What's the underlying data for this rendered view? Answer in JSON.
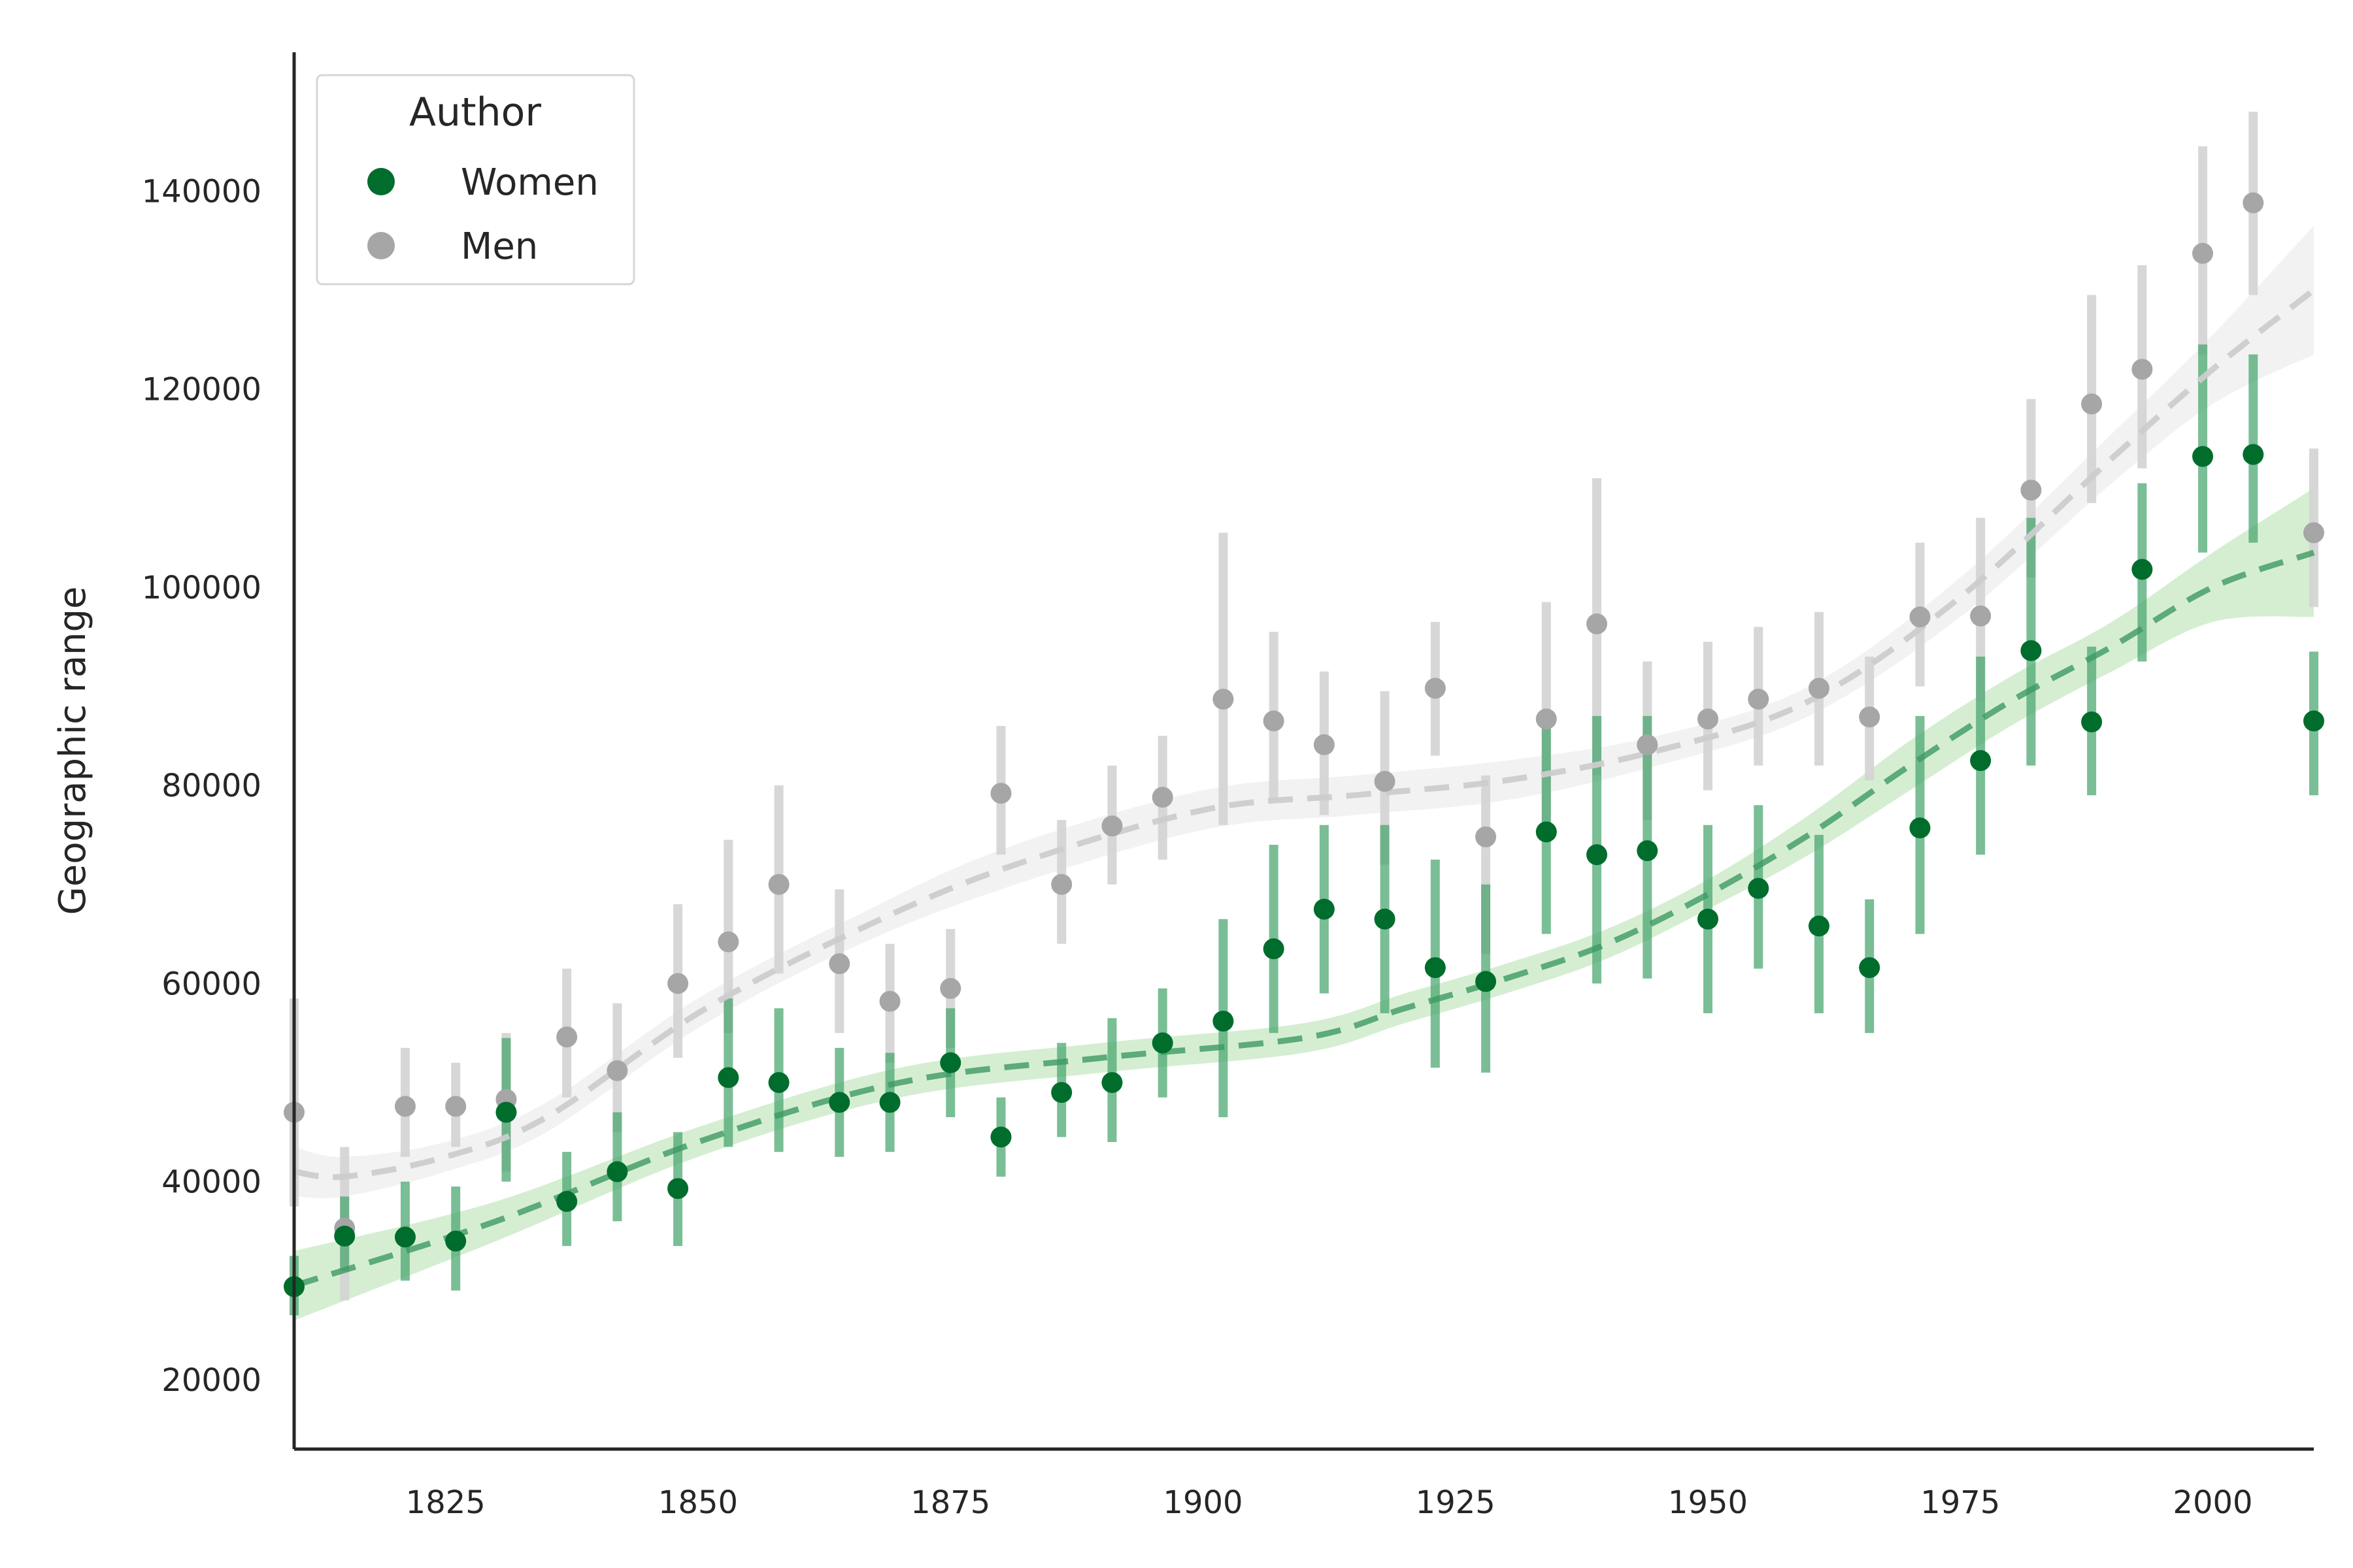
{
  "chart_data": {
    "type": "scatter",
    "title": "",
    "xlabel": "",
    "ylabel": "Geographic range",
    "xlim": [
      1810,
      2010
    ],
    "ylim": [
      13000,
      154000
    ],
    "xticks": [
      1825,
      1850,
      1875,
      1900,
      1925,
      1950,
      1975,
      2000
    ],
    "yticks": [
      20000,
      40000,
      60000,
      80000,
      100000,
      120000,
      140000
    ],
    "grid": false,
    "legend": {
      "title": "Author",
      "placement": "top-left"
    },
    "series": [
      {
        "name": "Women",
        "color": "#006d2c",
        "errorbar_color": "#41a36a",
        "trend_color": "#3d9a63",
        "band_color": "#a1d99b",
        "x": [
          1810,
          1815,
          1821,
          1826,
          1831,
          1837,
          1842,
          1848,
          1853,
          1858,
          1864,
          1869,
          1875,
          1880,
          1886,
          1891,
          1896,
          1902,
          1907,
          1912,
          1918,
          1923,
          1928,
          1934,
          1939,
          1944,
          1950,
          1955,
          1961,
          1966,
          1971,
          1977,
          1982,
          1988,
          1993,
          1999,
          2004,
          2010
        ],
        "y": [
          29400,
          34500,
          34400,
          34000,
          47000,
          38000,
          41000,
          39300,
          50500,
          50000,
          48000,
          48000,
          52000,
          44500,
          49000,
          50000,
          54000,
          56200,
          63500,
          67500,
          66500,
          61600,
          60200,
          75300,
          73000,
          73400,
          66500,
          69600,
          65800,
          61600,
          75700,
          82500,
          93600,
          86400,
          101800,
          113200,
          113400,
          86500
        ],
        "err_low": [
          26500,
          31000,
          30000,
          29000,
          40000,
          33500,
          36000,
          33500,
          43500,
          43000,
          42500,
          43000,
          46500,
          40500,
          44500,
          44000,
          48500,
          46500,
          55000,
          59000,
          57000,
          51500,
          51000,
          65000,
          60000,
          60500,
          57000,
          61500,
          57000,
          55000,
          65000,
          73000,
          82000,
          79000,
          92500,
          103500,
          104500,
          79000
        ],
        "err_high": [
          32500,
          38500,
          40000,
          39500,
          54500,
          43000,
          47000,
          45000,
          58500,
          57500,
          53500,
          53000,
          57500,
          48500,
          54000,
          56500,
          59500,
          66500,
          74000,
          76000,
          76000,
          72500,
          70000,
          86000,
          87000,
          87000,
          76000,
          78000,
          75000,
          68500,
          87000,
          93000,
          107000,
          94000,
          110500,
          124500,
          123500,
          93500
        ],
        "trend_x": [
          1810,
          1830,
          1850,
          1870,
          1890,
          1910,
          1920,
          1930,
          1940,
          1950,
          1960,
          1970,
          1980,
          1990,
          2000,
          2010
        ],
        "trend_y": [
          29500,
          36000,
          44000,
          50000,
          52500,
          54500,
          57500,
          60500,
          64000,
          69000,
          75000,
          82000,
          88500,
          94000,
          100000,
          103500
        ],
        "trend_band_halfwidth": [
          3500,
          2000,
          1500,
          1500,
          1500,
          1500,
          1500,
          1500,
          1500,
          1500,
          2000,
          2500,
          2500,
          2500,
          3500,
          6500
        ]
      },
      {
        "name": "Men",
        "color": "#a6a6a6",
        "errorbar_color": "#d3d3d3",
        "trend_color": "#cccccc",
        "band_color": "#ececec",
        "x": [
          1810,
          1815,
          1821,
          1826,
          1831,
          1837,
          1842,
          1848,
          1853,
          1858,
          1864,
          1869,
          1875,
          1880,
          1886,
          1891,
          1896,
          1902,
          1907,
          1912,
          1918,
          1923,
          1928,
          1934,
          1939,
          1944,
          1950,
          1955,
          1961,
          1966,
          1971,
          1977,
          1982,
          1988,
          1993,
          1999,
          2004,
          2010
        ],
        "y": [
          47000,
          35300,
          47600,
          47600,
          48300,
          54600,
          51200,
          60000,
          64200,
          70000,
          62000,
          58200,
          59500,
          79200,
          70000,
          75900,
          78800,
          88700,
          86500,
          84100,
          80400,
          89800,
          74800,
          86700,
          96300,
          84100,
          86700,
          88700,
          89800,
          86900,
          97000,
          97100,
          109800,
          118500,
          122000,
          133700,
          138800,
          105500
        ],
        "err_low": [
          37500,
          28000,
          42500,
          43500,
          41000,
          48500,
          45000,
          52500,
          55000,
          61000,
          55000,
          52000,
          53500,
          73000,
          64000,
          70000,
          72500,
          76000,
          78500,
          77000,
          72000,
          83000,
          63000,
          75000,
          81000,
          76500,
          79500,
          82000,
          82000,
          80500,
          90000,
          88500,
          101000,
          108500,
          112000,
          123500,
          129500,
          98000
        ],
        "err_high": [
          58500,
          43500,
          53500,
          52000,
          55000,
          61500,
          58000,
          68000,
          74500,
          80000,
          69500,
          64000,
          65500,
          86000,
          76500,
          82000,
          85000,
          105500,
          95500,
          91500,
          89500,
          96500,
          81000,
          98500,
          111000,
          92500,
          94500,
          96000,
          97500,
          93000,
          104500,
          107000,
          119000,
          129500,
          132500,
          144500,
          148000,
          114000
        ],
        "trend_x": [
          1810,
          1815,
          1825,
          1835,
          1850,
          1865,
          1880,
          1900,
          1915,
          1930,
          1945,
          1960,
          1975,
          1990,
          2000,
          2010
        ],
        "trend_y": [
          41000,
          40500,
          42500,
          46500,
          57000,
          65000,
          71500,
          77500,
          79000,
          80500,
          83500,
          88500,
          99000,
          113000,
          122000,
          130000
        ],
        "trend_band_halfwidth": [
          2500,
          2000,
          1500,
          1500,
          1500,
          1500,
          2000,
          2000,
          2000,
          2000,
          1500,
          1500,
          2000,
          2500,
          3500,
          6500
        ]
      }
    ]
  }
}
